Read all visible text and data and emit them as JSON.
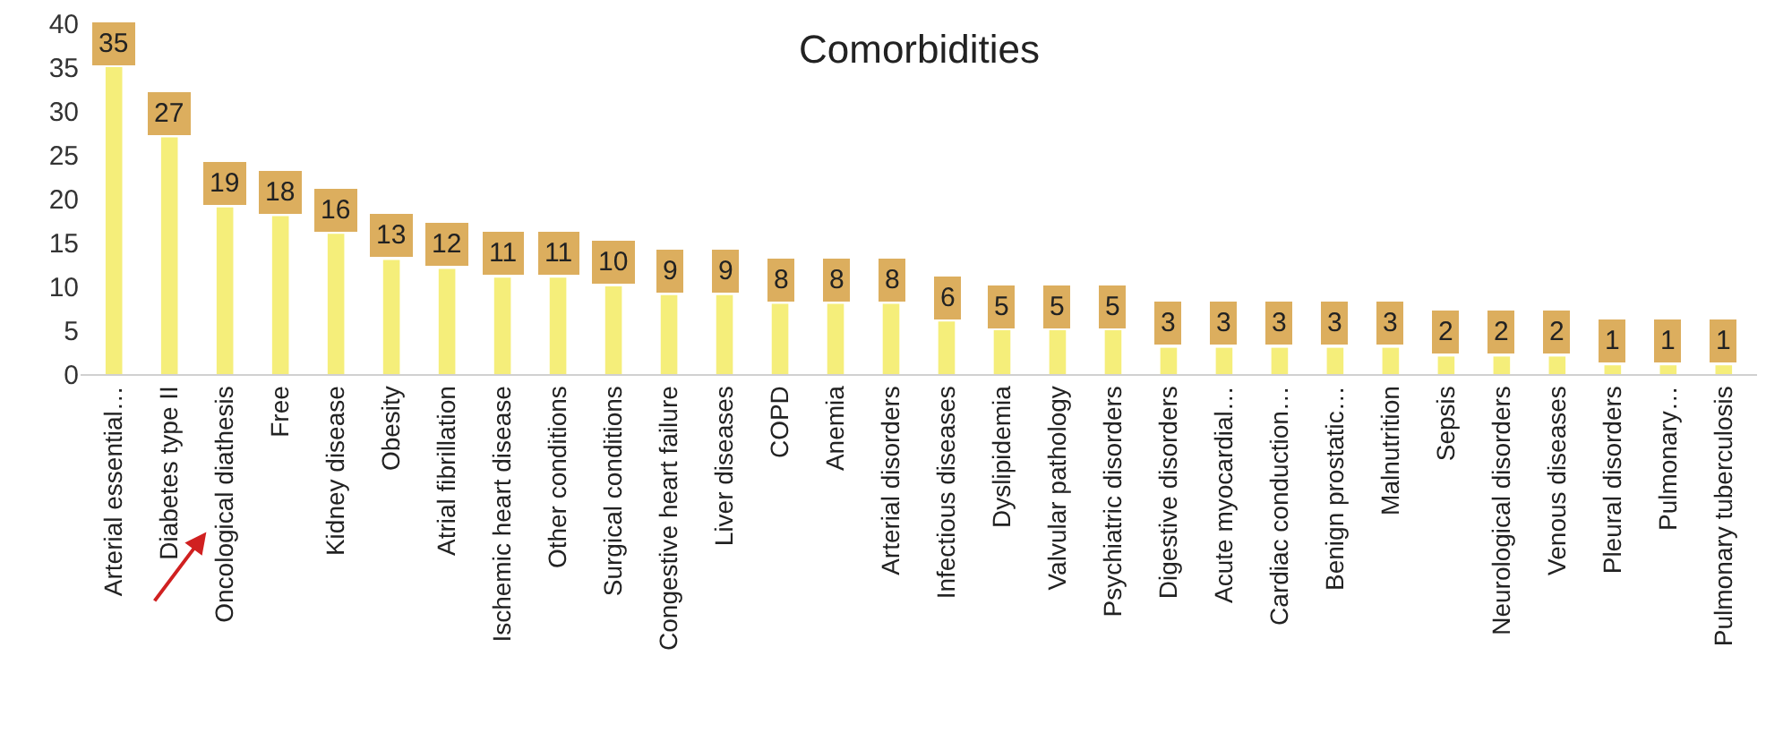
{
  "chart_data": {
    "type": "bar",
    "title": "Comorbidities",
    "categories": [
      "Arterial essential…",
      "Diabetes type II",
      "Oncological diathesis",
      "Free",
      "Kidney disease",
      "Obesity",
      "Atrial fibrillation",
      "Ischemic heart disease",
      "Other conditions",
      "Surgical conditions",
      "Congestive heart failure",
      "Liver diseases",
      "COPD",
      "Anemia",
      "Arterial disorders",
      "Infectious diseases",
      "Dyslipidemia",
      "Valvular pathology",
      "Psychiatric disorders",
      "Digestive disorders",
      "Acute myocardial…",
      "Cardiac conduction…",
      "Benign prostatic…",
      "Malnutrition",
      "Sepsis",
      "Neurological disorders",
      "Venous diseases",
      "Pleural disorders",
      "Pulmonary…",
      "Pulmonary tuberculosis"
    ],
    "values": [
      35,
      27,
      19,
      18,
      16,
      13,
      12,
      11,
      11,
      10,
      9,
      9,
      8,
      8,
      8,
      6,
      5,
      5,
      5,
      3,
      3,
      3,
      3,
      3,
      2,
      2,
      2,
      1,
      1,
      1
    ],
    "color": "#f5ee7a",
    "ylim": [
      0,
      40
    ],
    "yticks": [
      0,
      5,
      10,
      15,
      20,
      25,
      30,
      35,
      40
    ],
    "data_labels": true
  }
}
